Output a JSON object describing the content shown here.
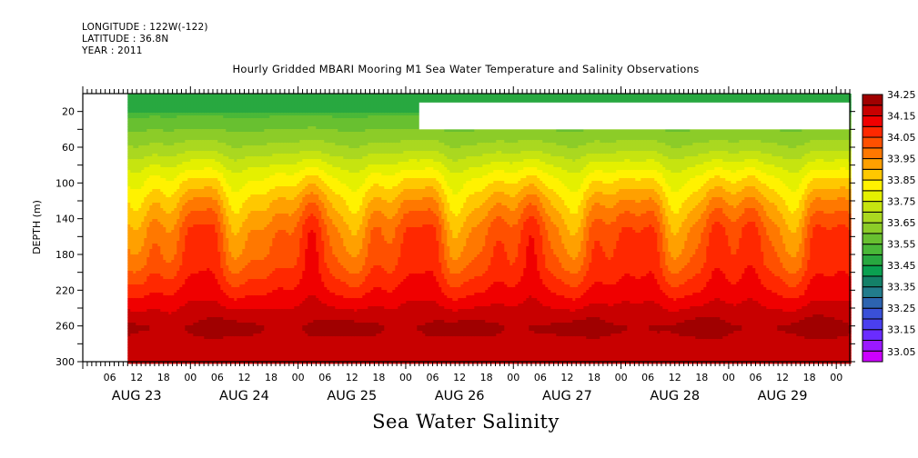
{
  "header": {
    "longitude": "LONGITUDE : 122W(-122)",
    "latitude": "LATITUDE : 36.8N",
    "year": "YEAR : 2011"
  },
  "chart_data": {
    "type": "heatmap",
    "title": "Hourly Gridded MBARI Mooring M1 Sea Water Temperature and Salinity Observations",
    "subtitle": "Sea Water Salinity",
    "xlabel": "",
    "ylabel": "DEPTH (m)",
    "x_range": [
      "AUG 23 00:00",
      "AUG 30 03:00"
    ],
    "data_start": "AUG 23 10:00",
    "y_range": [
      0,
      300
    ],
    "y_inverted": true,
    "y_ticks": [
      20,
      60,
      100,
      140,
      180,
      220,
      260,
      300
    ],
    "x_hour_ticks": [
      "06",
      "12",
      "18",
      "00",
      "06",
      "12",
      "18",
      "00",
      "06",
      "12",
      "18",
      "00",
      "06",
      "12",
      "18",
      "00",
      "06",
      "12",
      "18",
      "00",
      "06",
      "12",
      "18",
      "00",
      "06",
      "12",
      "18",
      "00"
    ],
    "x_date_labels": [
      "AUG 23",
      "AUG 24",
      "AUG 25",
      "AUG 26",
      "AUG 27",
      "AUG 28",
      "AUG 29"
    ],
    "missing_region": {
      "x_from": "AUG 26 03:00",
      "x_to": "AUG 30 03:00",
      "depth_from": 10,
      "depth_to": 40
    },
    "colorbar": {
      "levels": [
        33.05,
        33.1,
        33.15,
        33.2,
        33.25,
        33.3,
        33.35,
        33.4,
        33.45,
        33.5,
        33.55,
        33.6,
        33.65,
        33.7,
        33.75,
        33.8,
        33.85,
        33.9,
        33.95,
        34.0,
        34.05,
        34.1,
        34.15,
        34.2,
        34.25,
        34.3
      ],
      "labels": [
        "33.05",
        "33.15",
        "33.25",
        "33.35",
        "33.45",
        "33.55",
        "33.65",
        "33.75",
        "33.85",
        "33.95",
        "34.05",
        "34.15",
        "34.25"
      ],
      "colors": [
        "#cc00ff",
        "#9b19ff",
        "#6a2cff",
        "#4a3fef",
        "#3a50d8",
        "#2d64b0",
        "#227c8c",
        "#148068",
        "#0aa050",
        "#28a840",
        "#4ab838",
        "#68c030",
        "#8ccc28",
        "#aad820",
        "#c6e410",
        "#e4f000",
        "#fff200",
        "#ffc800",
        "#ffa000",
        "#ff7800",
        "#ff5000",
        "#ff2800",
        "#f00000",
        "#c80000",
        "#a00000"
      ]
    },
    "depth_profile_typical": [
      {
        "depth": 10,
        "salinity": 33.55
      },
      {
        "depth": 30,
        "salinity": 33.62
      },
      {
        "depth": 60,
        "salinity": 33.72
      },
      {
        "depth": 90,
        "salinity": 33.85
      },
      {
        "depth": 120,
        "salinity": 33.95
      },
      {
        "depth": 150,
        "salinity": 34.03
      },
      {
        "depth": 190,
        "salinity": 34.08
      },
      {
        "depth": 220,
        "salinity": 34.15
      },
      {
        "depth": 245,
        "salinity": 34.22
      },
      {
        "depth": 260,
        "salinity": 34.26
      },
      {
        "depth": 290,
        "salinity": 34.22
      }
    ]
  }
}
